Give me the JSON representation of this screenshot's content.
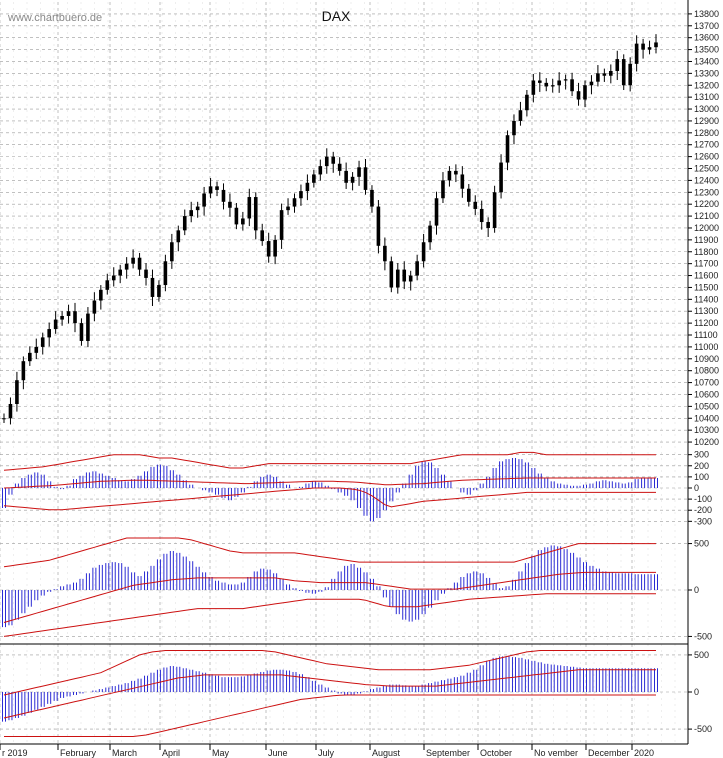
{
  "watermark": "www.chartbuero.de",
  "colors": {
    "grid": "#9a9a9a",
    "price": "#000000",
    "histogram": "#2b2bd4",
    "band": "#cc1111",
    "axis": "#000000"
  },
  "chart_data": [
    {
      "type": "candlestick",
      "title": "DAX",
      "ylim": [
        10150,
        13900
      ],
      "y_ticks": [
        10200,
        10300,
        10400,
        10500,
        10600,
        10700,
        10800,
        10900,
        11000,
        11100,
        11200,
        11300,
        11400,
        11500,
        11600,
        11700,
        11800,
        11900,
        12000,
        12100,
        12200,
        12300,
        12400,
        12500,
        12600,
        12700,
        12800,
        12900,
        13000,
        13100,
        13200,
        13300,
        13400,
        13500,
        13600,
        13700,
        13800
      ],
      "x_ticks": [
        "r 2019",
        "February",
        "March",
        "April",
        "May",
        "June",
        "July",
        "August",
        "September",
        "October",
        "No vember",
        "December",
        "2020"
      ],
      "close_series": [
        10400,
        10520,
        10720,
        10880,
        10950,
        11000,
        11080,
        11150,
        11230,
        11260,
        11300,
        11200,
        11050,
        11280,
        11390,
        11480,
        11560,
        11600,
        11650,
        11700,
        11750,
        11650,
        11580,
        11420,
        11520,
        11720,
        11880,
        11980,
        12100,
        12150,
        12180,
        12290,
        12350,
        12320,
        12220,
        12170,
        12030,
        12080,
        12260,
        11980,
        11890,
        11760,
        11900,
        12150,
        12180,
        12250,
        12310,
        12380,
        12450,
        12520,
        12600,
        12540,
        12480,
        12380,
        12430,
        12510,
        12320,
        12180,
        11850,
        11720,
        11500,
        11650,
        11550,
        11600,
        11720,
        11880,
        12020,
        12250,
        12400,
        12480,
        12450,
        12330,
        12220,
        12160,
        12050,
        12000,
        12300,
        12550,
        12780,
        12900,
        12990,
        13120,
        13240,
        13220,
        13190,
        13200,
        13240,
        13250,
        13150,
        13080,
        13200,
        13230,
        13300,
        13280,
        13320,
        13420,
        13200,
        13380,
        13550,
        13500,
        13520,
        13560
      ]
    },
    {
      "type": "histogram",
      "y_ticks": [
        300,
        200,
        100,
        0,
        -100,
        -200,
        -300
      ],
      "ylim": [
        -360,
        360
      ],
      "values": [
        -180,
        -60,
        40,
        90,
        120,
        140,
        120,
        60,
        10,
        -10,
        20,
        80,
        110,
        140,
        150,
        130,
        110,
        90,
        70,
        60,
        80,
        110,
        150,
        190,
        210,
        200,
        160,
        120,
        70,
        30,
        0,
        -20,
        -40,
        -60,
        -90,
        -110,
        -80,
        -40,
        10,
        60,
        100,
        120,
        100,
        60,
        30,
        0,
        10,
        40,
        60,
        50,
        20,
        -10,
        -40,
        -70,
        -110,
        -180,
        -250,
        -300,
        -270,
        -200,
        -120,
        -40,
        40,
        120,
        200,
        240,
        230,
        180,
        120,
        60,
        0,
        -40,
        -60,
        -20,
        40,
        100,
        180,
        240,
        260,
        270,
        260,
        230,
        180,
        130,
        90,
        60,
        40,
        30,
        20,
        20,
        30,
        40,
        60,
        70,
        60,
        50,
        40,
        50,
        80,
        90,
        90,
        90
      ],
      "upper_band": [
        160,
        165,
        170,
        175,
        180,
        185,
        190,
        200,
        210,
        220,
        230,
        240,
        250,
        260,
        270,
        280,
        290,
        300,
        300,
        300,
        300,
        300,
        290,
        280,
        270,
        270,
        270,
        260,
        250,
        240,
        230,
        220,
        210,
        200,
        190,
        180,
        180,
        180,
        190,
        200,
        210,
        220,
        220,
        220,
        220,
        220,
        220,
        220,
        220,
        220,
        220,
        220,
        220,
        220,
        220,
        220,
        220,
        220,
        220,
        220,
        220,
        220,
        220,
        220,
        230,
        240,
        250,
        260,
        270,
        280,
        290,
        300,
        300,
        300,
        300,
        300,
        300,
        300,
        300,
        310,
        320,
        320,
        320,
        310,
        300,
        300,
        300,
        300,
        300,
        300,
        300,
        300,
        300,
        300,
        300,
        300,
        300,
        300,
        300,
        300,
        300,
        300
      ],
      "lower_band": [
        -160,
        -165,
        -170,
        -175,
        -180,
        -185,
        -190,
        -195,
        -195,
        -195,
        -190,
        -185,
        -180,
        -175,
        -170,
        -165,
        -160,
        -155,
        -150,
        -145,
        -140,
        -135,
        -130,
        -125,
        -120,
        -115,
        -110,
        -105,
        -100,
        -95,
        -90,
        -85,
        -80,
        -75,
        -70,
        -65,
        -60,
        -55,
        -50,
        -45,
        -40,
        -35,
        -30,
        -25,
        -20,
        -15,
        -10,
        -5,
        0,
        0,
        0,
        0,
        0,
        -5,
        -10,
        -20,
        -40,
        -70,
        -110,
        -150,
        -170,
        -160,
        -150,
        -140,
        -130,
        -120,
        -115,
        -110,
        -105,
        -100,
        -95,
        -90,
        -85,
        -80,
        -75,
        -70,
        -65,
        -60,
        -55,
        -50,
        -45,
        -40,
        -40,
        -40,
        -40,
        -40,
        -40,
        -40,
        -40,
        -40,
        -40,
        -40,
        -40,
        -40,
        -40,
        -40,
        -40,
        -40,
        -40,
        -40,
        -40,
        -40
      ],
      "mid_line": [
        0,
        2,
        5,
        8,
        12,
        15,
        18,
        20,
        25,
        30,
        35,
        40,
        45,
        50,
        55,
        60,
        62,
        64,
        66,
        68,
        70,
        70,
        70,
        68,
        66,
        64,
        62,
        60,
        58,
        56,
        54,
        52,
        50,
        48,
        46,
        44,
        42,
        40,
        40,
        42,
        44,
        46,
        48,
        50,
        52,
        54,
        56,
        58,
        60,
        60,
        60,
        60,
        58,
        56,
        54,
        50,
        45,
        40,
        35,
        30,
        30,
        32,
        34,
        36,
        38,
        40,
        45,
        50,
        55,
        60,
        65,
        70,
        72,
        74,
        76,
        78,
        80,
        82,
        84,
        86,
        88,
        90,
        90,
        90,
        90,
        90,
        90,
        90,
        90,
        90,
        90,
        90,
        90,
        90,
        90,
        90,
        90,
        90,
        90,
        90,
        90,
        90
      ]
    },
    {
      "type": "histogram",
      "y_ticks": [
        500,
        0,
        -500
      ],
      "ylim": [
        -560,
        560
      ],
      "values": [
        -400,
        -380,
        -320,
        -250,
        -180,
        -110,
        -60,
        -20,
        10,
        40,
        60,
        80,
        120,
        180,
        240,
        270,
        290,
        300,
        290,
        250,
        190,
        150,
        200,
        260,
        330,
        390,
        420,
        400,
        360,
        310,
        250,
        190,
        140,
        100,
        80,
        60,
        60,
        80,
        140,
        200,
        230,
        220,
        180,
        120,
        60,
        20,
        -10,
        -30,
        -40,
        -20,
        30,
        120,
        200,
        260,
        280,
        240,
        190,
        120,
        40,
        -80,
        -180,
        -260,
        -320,
        -340,
        -320,
        -260,
        -190,
        -110,
        -40,
        20,
        80,
        140,
        180,
        200,
        180,
        130,
        70,
        20,
        40,
        110,
        200,
        290,
        370,
        430,
        460,
        480,
        470,
        440,
        400,
        350,
        300,
        260,
        230,
        200,
        190,
        180,
        180,
        180,
        170,
        170,
        170,
        170
      ],
      "upper_band": [
        250,
        260,
        270,
        280,
        290,
        300,
        310,
        320,
        340,
        360,
        380,
        400,
        420,
        440,
        460,
        480,
        500,
        520,
        540,
        560,
        560,
        560,
        560,
        560,
        560,
        560,
        560,
        560,
        550,
        540,
        520,
        500,
        480,
        460,
        440,
        420,
        410,
        400,
        400,
        400,
        400,
        400,
        400,
        400,
        400,
        400,
        390,
        380,
        370,
        360,
        350,
        340,
        330,
        320,
        310,
        300,
        300,
        300,
        300,
        300,
        300,
        300,
        300,
        300,
        300,
        300,
        300,
        300,
        300,
        300,
        300,
        300,
        300,
        300,
        300,
        300,
        300,
        300,
        300,
        300,
        320,
        340,
        360,
        380,
        400,
        420,
        440,
        460,
        480,
        500,
        500,
        500,
        500,
        500,
        500,
        500,
        500,
        500,
        500,
        500,
        500,
        500
      ],
      "lower_band": [
        -500,
        -490,
        -480,
        -470,
        -460,
        -450,
        -440,
        -430,
        -420,
        -410,
        -400,
        -390,
        -380,
        -370,
        -360,
        -350,
        -340,
        -330,
        -320,
        -310,
        -300,
        -290,
        -280,
        -270,
        -260,
        -250,
        -240,
        -230,
        -220,
        -210,
        -200,
        -200,
        -200,
        -200,
        -200,
        -200,
        -200,
        -200,
        -190,
        -180,
        -170,
        -160,
        -150,
        -140,
        -130,
        -120,
        -110,
        -100,
        -100,
        -100,
        -100,
        -100,
        -100,
        -100,
        -100,
        -100,
        -110,
        -130,
        -150,
        -170,
        -180,
        -180,
        -180,
        -180,
        -180,
        -170,
        -160,
        -150,
        -140,
        -130,
        -120,
        -110,
        -100,
        -95,
        -90,
        -85,
        -80,
        -75,
        -70,
        -65,
        -60,
        -55,
        -50,
        -45,
        -40,
        -40,
        -40,
        -40,
        -40,
        -40,
        -40,
        -40,
        -40,
        -40,
        -40,
        -40,
        -40,
        -40,
        -40,
        -40,
        -40,
        -40
      ],
      "mid_line": [
        -350,
        -330,
        -310,
        -290,
        -270,
        -250,
        -230,
        -210,
        -190,
        -170,
        -150,
        -130,
        -110,
        -90,
        -70,
        -50,
        -30,
        -10,
        10,
        30,
        50,
        60,
        70,
        80,
        90,
        100,
        110,
        115,
        120,
        125,
        130,
        130,
        130,
        130,
        130,
        130,
        130,
        130,
        130,
        130,
        130,
        130,
        130,
        120,
        110,
        100,
        95,
        90,
        85,
        80,
        80,
        80,
        80,
        80,
        80,
        80,
        80,
        70,
        60,
        50,
        40,
        30,
        20,
        10,
        10,
        10,
        10,
        10,
        10,
        10,
        10,
        20,
        30,
        40,
        50,
        60,
        70,
        80,
        90,
        100,
        110,
        120,
        130,
        140,
        150,
        160,
        170,
        175,
        180,
        185,
        190,
        190,
        190,
        190,
        190,
        190,
        190,
        190,
        190,
        190,
        190,
        190
      ]
    },
    {
      "type": "histogram",
      "y_ticks": [
        500,
        0,
        -500
      ],
      "ylim": [
        -620,
        620
      ],
      "values": [
        -400,
        -380,
        -350,
        -320,
        -280,
        -240,
        -200,
        -160,
        -120,
        -80,
        -60,
        -40,
        -20,
        0,
        20,
        40,
        60,
        80,
        100,
        120,
        150,
        180,
        220,
        260,
        300,
        330,
        350,
        340,
        320,
        300,
        280,
        260,
        240,
        220,
        200,
        200,
        200,
        210,
        230,
        250,
        270,
        290,
        300,
        300,
        290,
        270,
        240,
        200,
        150,
        100,
        60,
        20,
        -20,
        -40,
        -40,
        -20,
        10,
        40,
        60,
        80,
        100,
        100,
        90,
        80,
        80,
        100,
        120,
        140,
        160,
        180,
        200,
        220,
        260,
        300,
        360,
        420,
        460,
        480,
        480,
        470,
        460,
        440,
        420,
        400,
        380,
        370,
        360,
        350,
        340,
        330,
        320,
        320,
        320,
        320,
        320,
        320,
        320,
        320,
        320,
        320,
        320,
        320
      ],
      "upper_band": [
        -40,
        -20,
        0,
        20,
        40,
        60,
        80,
        100,
        120,
        140,
        160,
        180,
        200,
        220,
        240,
        260,
        300,
        340,
        380,
        420,
        460,
        500,
        520,
        540,
        550,
        560,
        560,
        560,
        560,
        560,
        560,
        560,
        560,
        560,
        560,
        560,
        560,
        560,
        560,
        560,
        560,
        550,
        540,
        520,
        500,
        480,
        460,
        440,
        420,
        400,
        380,
        370,
        360,
        350,
        340,
        330,
        320,
        310,
        300,
        300,
        300,
        300,
        300,
        300,
        300,
        300,
        300,
        310,
        320,
        330,
        340,
        350,
        360,
        380,
        400,
        420,
        440,
        460,
        480,
        500,
        520,
        540,
        550,
        560,
        560,
        560,
        560,
        560,
        560,
        560,
        560,
        560,
        560,
        560,
        560,
        560,
        560,
        560,
        560,
        560,
        560,
        560
      ],
      "lower_band": [
        -600,
        -600,
        -600,
        -600,
        -600,
        -600,
        -600,
        -600,
        -600,
        -600,
        -600,
        -600,
        -600,
        -600,
        -600,
        -600,
        -600,
        -600,
        -600,
        -600,
        -600,
        -590,
        -580,
        -560,
        -540,
        -520,
        -500,
        -480,
        -460,
        -440,
        -420,
        -400,
        -380,
        -360,
        -340,
        -320,
        -300,
        -280,
        -260,
        -240,
        -220,
        -200,
        -180,
        -160,
        -140,
        -120,
        -100,
        -90,
        -80,
        -70,
        -60,
        -50,
        -45,
        -40,
        -40,
        -40,
        -40,
        -40,
        -40,
        -40,
        -40,
        -40,
        -40,
        -40,
        -40,
        -40,
        -40,
        -40,
        -40,
        -40,
        -40,
        -40,
        -40,
        -40,
        -40,
        -40,
        -40,
        -40,
        -40,
        -40,
        -40,
        -40,
        -40,
        -40,
        -40,
        -40,
        -40,
        -40,
        -40,
        -40,
        -40,
        -40,
        -40,
        -40,
        -40,
        -40,
        -40,
        -40,
        -40,
        -40,
        -40,
        -40
      ],
      "mid_line": [
        -350,
        -330,
        -310,
        -290,
        -270,
        -250,
        -230,
        -210,
        -190,
        -170,
        -150,
        -130,
        -110,
        -90,
        -70,
        -50,
        -30,
        -10,
        10,
        30,
        50,
        70,
        90,
        110,
        130,
        150,
        170,
        190,
        200,
        210,
        220,
        230,
        230,
        230,
        230,
        230,
        230,
        230,
        230,
        230,
        230,
        230,
        230,
        230,
        220,
        210,
        200,
        190,
        180,
        170,
        160,
        150,
        140,
        130,
        120,
        110,
        100,
        95,
        90,
        85,
        80,
        80,
        80,
        80,
        80,
        80,
        80,
        80,
        90,
        100,
        110,
        120,
        130,
        140,
        150,
        160,
        170,
        180,
        190,
        200,
        210,
        220,
        230,
        240,
        250,
        260,
        270,
        280,
        290,
        300,
        300,
        300,
        300,
        300,
        300,
        300,
        300,
        300,
        300,
        300,
        300,
        300
      ]
    }
  ]
}
